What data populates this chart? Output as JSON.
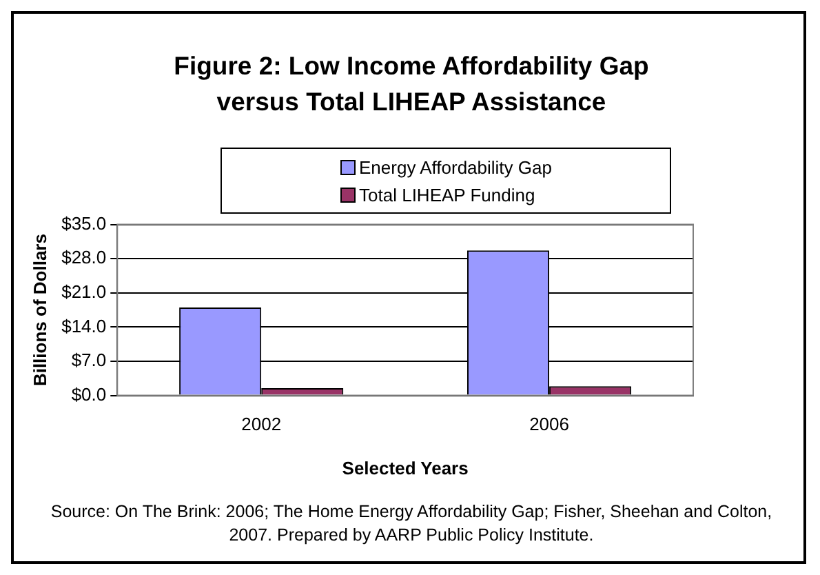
{
  "chart_data": {
    "type": "bar",
    "title": "Figure 2: Low Income Affordability Gap versus Total LIHEAP Assistance",
    "xlabel": "Selected Years",
    "ylabel": "Billions of Dollars",
    "categories": [
      "2002",
      "2006"
    ],
    "series": [
      {
        "name": "Energy Affordability Gap",
        "color": "#9999ff",
        "values": [
          18.0,
          29.7
        ]
      },
      {
        "name": "Total LIHEAP Funding",
        "color": "#993366",
        "values": [
          1.5,
          1.9
        ]
      }
    ],
    "ylim": [
      0,
      35
    ],
    "yticks": [
      {
        "value": 0,
        "label": "$0.0"
      },
      {
        "value": 7,
        "label": "$7.0"
      },
      {
        "value": 14,
        "label": "$14.0"
      },
      {
        "value": 21,
        "label": "$21.0"
      },
      {
        "value": 28,
        "label": "$28.0"
      },
      {
        "value": 35,
        "label": "$35.0"
      }
    ],
    "grid": "y",
    "legend": "top",
    "annotations": [
      "Source: On The Brink: 2006; The Home Energy Affordability Gap; Fisher, Sheehan and Colton, 2007. Prepared by AARP Public Policy Institute."
    ]
  }
}
